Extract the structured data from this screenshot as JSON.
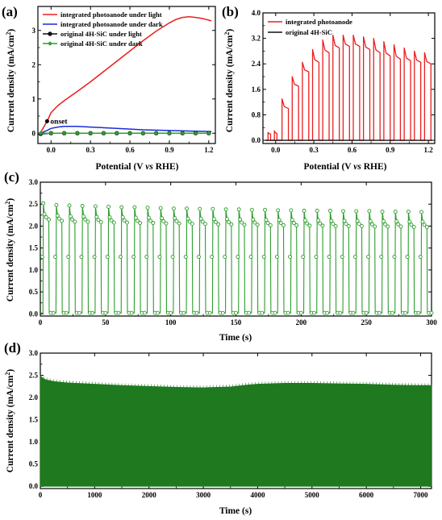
{
  "chart_data": [
    {
      "panel": "(a)",
      "type": "line",
      "xlabel": "Potential (V vs RHE)",
      "ylabel": "Current density (mA/cm²)",
      "xlim": [
        -0.1,
        1.25
      ],
      "ylim": [
        -0.3,
        3.7
      ],
      "xticks": [
        "0.0",
        "0.3",
        "0.6",
        "0.9",
        "1.2"
      ],
      "yticks": [
        "0",
        "1",
        "2",
        "3"
      ],
      "legend_position": "top-left",
      "series": [
        {
          "name": "integrated photoanode under light",
          "color": "#e8201f",
          "marker": "none",
          "x": [
            -0.08,
            -0.03,
            0.0,
            0.05,
            0.1,
            0.2,
            0.3,
            0.4,
            0.5,
            0.6,
            0.7,
            0.8,
            0.9,
            0.95,
            1.0,
            1.05,
            1.1,
            1.15,
            1.2,
            1.22
          ],
          "y": [
            0.02,
            0.35,
            0.6,
            0.8,
            0.95,
            1.22,
            1.5,
            1.8,
            2.1,
            2.4,
            2.7,
            2.98,
            3.22,
            3.32,
            3.38,
            3.4,
            3.38,
            3.35,
            3.3,
            3.28
          ]
        },
        {
          "name": "integrated photoanode under dark",
          "color": "#1a2bd8",
          "marker": "none",
          "x": [
            -0.08,
            -0.03,
            0.0,
            0.05,
            0.1,
            0.2,
            0.3,
            0.5,
            0.7,
            0.9,
            1.1,
            1.22
          ],
          "y": [
            0.0,
            0.08,
            0.14,
            0.18,
            0.2,
            0.2,
            0.18,
            0.14,
            0.1,
            0.08,
            0.06,
            0.05
          ]
        },
        {
          "name": "original 4H-SiC under light",
          "color": "#111111",
          "marker": "circle",
          "x": [
            -0.08,
            0.0,
            0.1,
            0.2,
            0.3,
            0.4,
            0.5,
            0.6,
            0.7,
            0.8,
            0.9,
            1.0,
            1.1,
            1.2
          ],
          "y": [
            -0.02,
            0.0,
            0.0,
            0.0,
            0.0,
            0.0,
            0.0,
            0.0,
            0.0,
            0.0,
            0.0,
            0.0,
            0.0,
            0.0
          ]
        },
        {
          "name": "original 4H-SiC under dark",
          "color": "#2e9e2e",
          "marker": "diamond",
          "x": [
            -0.08,
            0.0,
            0.1,
            0.2,
            0.3,
            0.4,
            0.5,
            0.6,
            0.7,
            0.8,
            0.9,
            1.0,
            1.1,
            1.2
          ],
          "y": [
            0.0,
            0.0,
            0.0,
            0.0,
            0.0,
            0.0,
            0.0,
            0.0,
            0.0,
            0.0,
            0.0,
            0.0,
            0.0,
            0.0
          ]
        }
      ],
      "annotations": [
        {
          "text": "onset",
          "x": -0.03,
          "y": 0.35
        }
      ]
    },
    {
      "panel": "(b)",
      "type": "line",
      "xlabel": "Potential (V vs RHE)",
      "ylabel": "Current density (mA/cm²)",
      "xlim": [
        -0.1,
        1.25
      ],
      "ylim": [
        -0.1,
        4.0
      ],
      "xticks": [
        "0.0",
        "0.3",
        "0.6",
        "0.9",
        "1.2"
      ],
      "yticks": [
        "0.0",
        "0.8",
        "1.6",
        "2.4",
        "3.2",
        "4.0"
      ],
      "legend_position": "top-left",
      "series": [
        {
          "name": "integrated photoanode",
          "color": "#e8201f",
          "marker": "none",
          "pulse_start": [
            -0.06,
            -0.01,
            0.05,
            0.13,
            0.21,
            0.29,
            0.37,
            0.45,
            0.53,
            0.61,
            0.69,
            0.77,
            0.85,
            0.93,
            1.01,
            1.09,
            1.17
          ],
          "pulse_end": [
            -0.04,
            0.01,
            0.1,
            0.18,
            0.26,
            0.34,
            0.42,
            0.5,
            0.58,
            0.66,
            0.74,
            0.82,
            0.9,
            0.98,
            1.06,
            1.14,
            1.22
          ],
          "pulse_peak": [
            0.25,
            0.3,
            1.3,
            2.0,
            2.45,
            2.85,
            3.15,
            3.3,
            3.3,
            3.3,
            3.25,
            3.2,
            3.1,
            3.0,
            2.9,
            2.8,
            2.75
          ],
          "pulse_plateau": [
            0.2,
            0.22,
            1.0,
            1.7,
            2.15,
            2.45,
            2.75,
            2.9,
            2.95,
            2.95,
            2.85,
            2.75,
            2.65,
            2.55,
            2.5,
            2.45,
            2.4
          ]
        },
        {
          "name": "original 4H-SiC",
          "color": "#111111",
          "marker": "none",
          "x": [
            -0.08,
            1.23
          ],
          "y": [
            0.0,
            0.0
          ]
        }
      ]
    },
    {
      "panel": "(c)",
      "type": "line",
      "xlabel": "Time (s)",
      "ylabel": "Current density (mA/cm²)",
      "xlim": [
        0,
        300
      ],
      "ylim": [
        -0.05,
        3.0
      ],
      "xticks": [
        "0",
        "50",
        "100",
        "150",
        "200",
        "250",
        "300"
      ],
      "yticks": [
        "0.0",
        "0.5",
        "1.0",
        "1.5",
        "2.0",
        "2.5",
        "3.0"
      ],
      "series": [
        {
          "name": "",
          "color": "#2e9e2e",
          "marker": "circle-open",
          "period_s": 10,
          "duty_on_s": 4.5,
          "first_on_s": 2,
          "cycles": 30,
          "peak_values": [
            2.52,
            2.48,
            2.47,
            2.46,
            2.45,
            2.44,
            2.43,
            2.43,
            2.42,
            2.41,
            2.4,
            2.4,
            2.39,
            2.39,
            2.38,
            2.38,
            2.37,
            2.37,
            2.36,
            2.36,
            2.35,
            2.35,
            2.35,
            2.34,
            2.34,
            2.34,
            2.33,
            2.33,
            2.33,
            2.32
          ],
          "plateau_values": [
            2.15,
            2.12,
            2.1,
            2.1,
            2.09,
            2.08,
            2.08,
            2.07,
            2.07,
            2.06,
            2.06,
            2.05,
            2.05,
            2.04,
            2.04,
            2.03,
            2.03,
            2.02,
            2.02,
            2.02,
            2.01,
            2.01,
            2.0,
            2.0,
            2.0,
            1.99,
            1.99,
            1.99,
            1.98,
            1.98
          ],
          "dark_value": 0.02
        }
      ]
    },
    {
      "panel": "(d)",
      "type": "area",
      "xlabel": "Time (s)",
      "ylabel": "Current density (mA/cm²)",
      "xlim": [
        0,
        7200
      ],
      "ylim": [
        -0.05,
        3.0
      ],
      "xticks": [
        "0",
        "1000",
        "2000",
        "3000",
        "4000",
        "5000",
        "6000",
        "7000"
      ],
      "yticks": [
        "0.0",
        "0.5",
        "1.0",
        "1.5",
        "2.0",
        "2.5",
        "3.0"
      ],
      "series": [
        {
          "name": "",
          "color": "#1f7a1f",
          "x": [
            0,
            30,
            100,
            250,
            500,
            1000,
            1500,
            2000,
            2500,
            3000,
            3500,
            3800,
            4000,
            4500,
            5000,
            5500,
            6000,
            6500,
            7000,
            7200
          ],
          "y": [
            2.5,
            2.45,
            2.4,
            2.36,
            2.33,
            2.3,
            2.27,
            2.25,
            2.23,
            2.22,
            2.24,
            2.28,
            2.3,
            2.32,
            2.32,
            2.31,
            2.3,
            2.28,
            2.27,
            2.27
          ],
          "baseline": 0.0
        }
      ]
    }
  ]
}
